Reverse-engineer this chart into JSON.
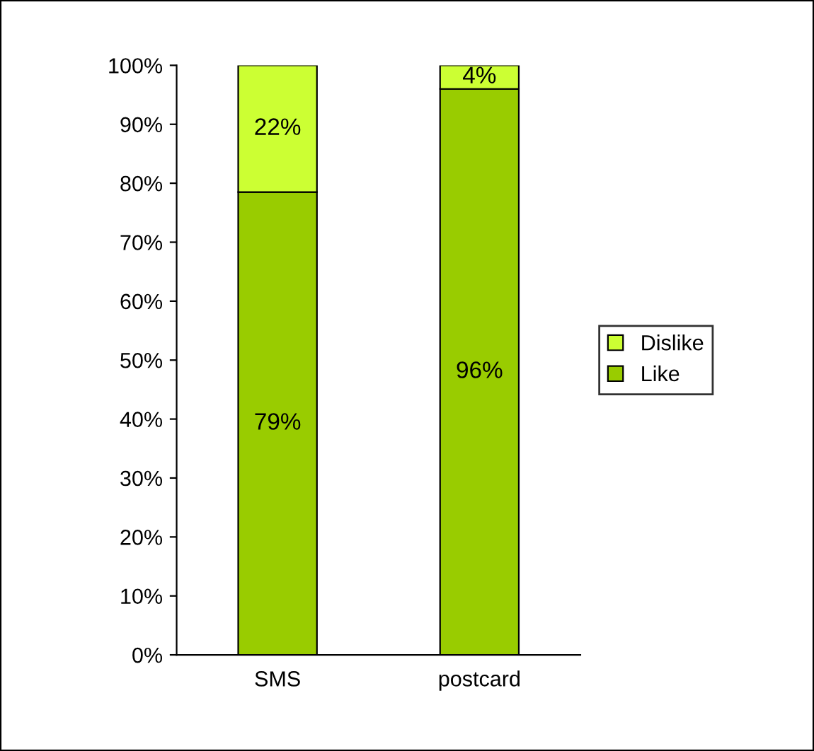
{
  "chart_data": {
    "type": "bar",
    "stacked": true,
    "categories": [
      "SMS",
      "postcard"
    ],
    "series": [
      {
        "name": "Like",
        "color": "#99cc00",
        "values": [
          78.5,
          96
        ],
        "value_labels": [
          "79%",
          "96%"
        ]
      },
      {
        "name": "Dislike",
        "color": "#ccff33",
        "values": [
          21.5,
          4
        ],
        "value_labels": [
          "22%",
          "4%"
        ]
      }
    ],
    "ylim": [
      0,
      100
    ],
    "yticks": [
      {
        "value": 0,
        "label": "0%"
      },
      {
        "value": 10,
        "label": "10%"
      },
      {
        "value": 20,
        "label": "20%"
      },
      {
        "value": 30,
        "label": "30%"
      },
      {
        "value": 40,
        "label": "40%"
      },
      {
        "value": 50,
        "label": "50%"
      },
      {
        "value": 60,
        "label": "60%"
      },
      {
        "value": 70,
        "label": "70%"
      },
      {
        "value": 80,
        "label": "80%"
      },
      {
        "value": 90,
        "label": "90%"
      },
      {
        "value": 100,
        "label": "100%"
      }
    ],
    "grid": false,
    "legend": "right"
  }
}
